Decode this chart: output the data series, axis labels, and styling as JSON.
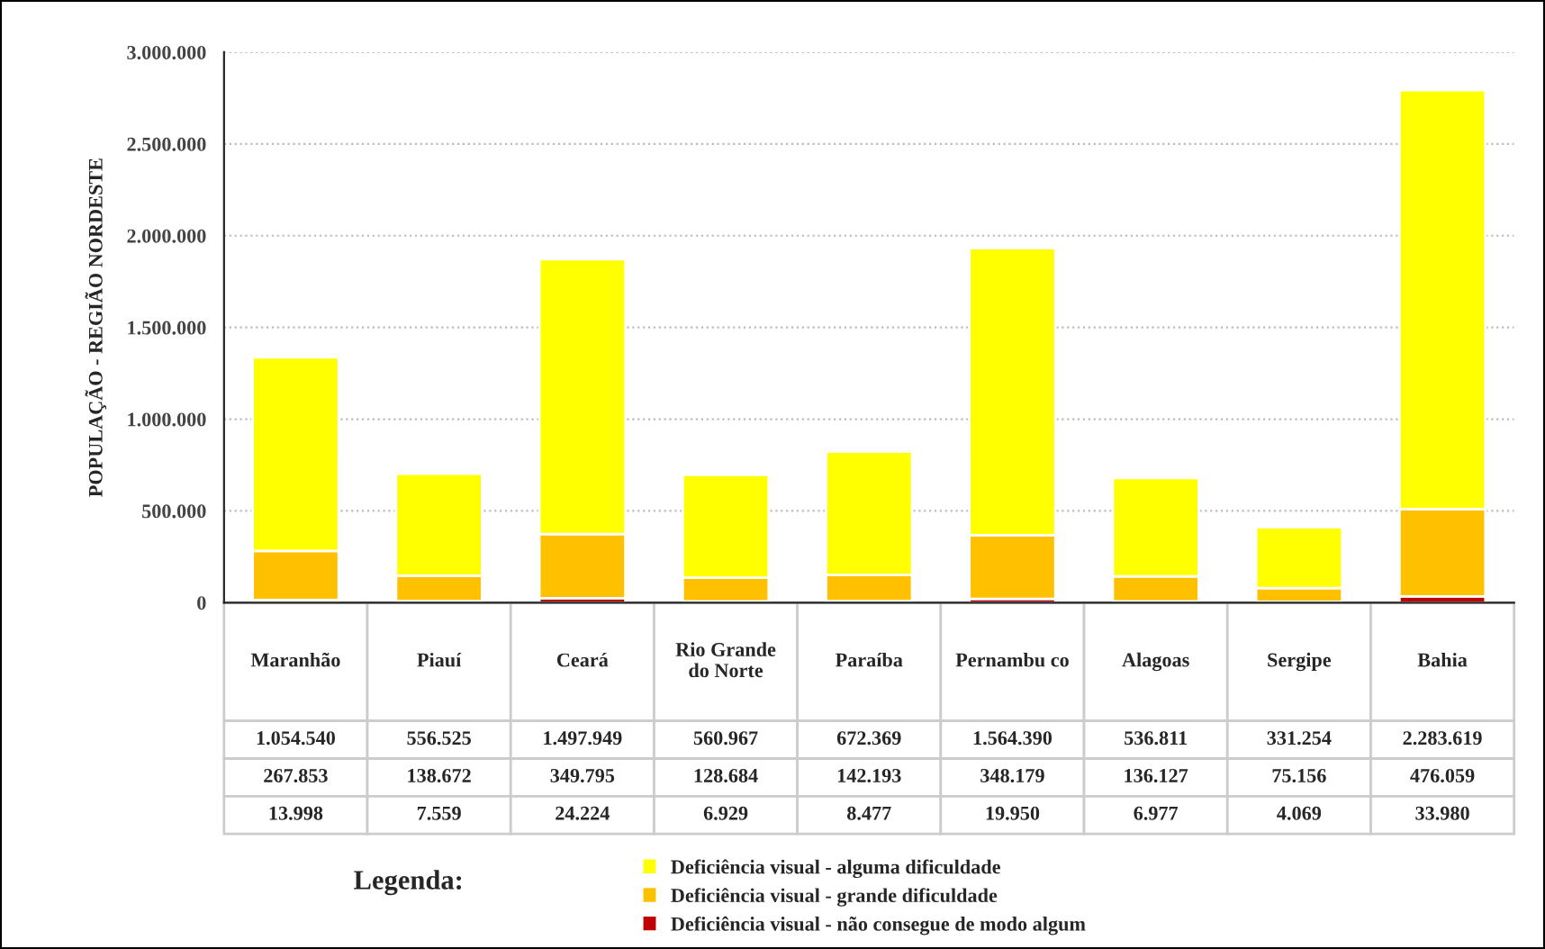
{
  "chart_data": {
    "type": "bar",
    "stacked": true,
    "ylabel": "POPULAÇÃO - REGIÃO NORDESTE",
    "legend_title": "Legenda:",
    "legend": "bottom",
    "grid": "y",
    "data_labels": true,
    "categories": [
      "Maranhão",
      "Piauí",
      "Ceará",
      "Rio Grande do Norte",
      "Paraíba",
      "Pernambu co",
      "Alagoas",
      "Sergipe",
      "Bahia"
    ],
    "series": [
      {
        "name": "Deficiência visual - não consegue de modo algum",
        "color": "#c00000",
        "values": [
          13998,
          7559,
          24224,
          6929,
          8477,
          19950,
          6977,
          4069,
          33980
        ],
        "value_labels": [
          "13.998",
          "7.559",
          "24.224",
          "6.929",
          "8.477",
          "19.950",
          "6.977",
          "4.069",
          "33.980"
        ]
      },
      {
        "name": "Deficiência visual - grande dificuldade",
        "color": "#ffc000",
        "values": [
          267853,
          138672,
          349795,
          128684,
          142193,
          348179,
          136127,
          75156,
          476059
        ],
        "value_labels": [
          "267.853",
          "138.672",
          "349.795",
          "128.684",
          "142.193",
          "348.179",
          "136.127",
          "75.156",
          "476.059"
        ]
      },
      {
        "name": "Deficiência visual - alguma dificuldade",
        "color": "#ffff00",
        "values": [
          1054540,
          556525,
          1497949,
          560967,
          672369,
          1564390,
          536811,
          331254,
          2283619
        ],
        "value_labels": [
          "1.054.540",
          "556.525",
          "1.497.949",
          "560.967",
          "672.369",
          "1.564.390",
          "536.811",
          "331.254",
          "2.283.619"
        ]
      }
    ],
    "ylim": [
      0,
      3000000
    ],
    "yticks": [
      {
        "value": 0,
        "label": "0"
      },
      {
        "value": 500000,
        "label": "500.000"
      },
      {
        "value": 1000000,
        "label": "1.000.000"
      },
      {
        "value": 1500000,
        "label": "1.500.000"
      },
      {
        "value": 2000000,
        "label": "2.000.000"
      },
      {
        "value": 2500000,
        "label": "2.500.000"
      },
      {
        "value": 3000000,
        "label": "3.000.000"
      }
    ]
  }
}
